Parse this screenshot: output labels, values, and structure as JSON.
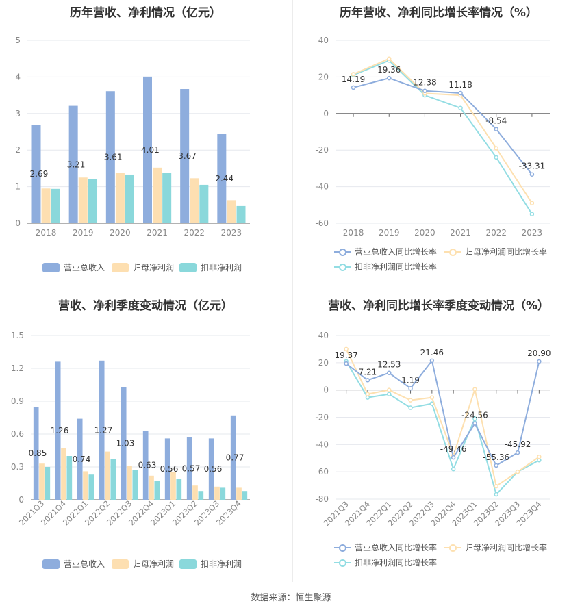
{
  "source_text": "数据来源：恒生聚源",
  "colors": {
    "revenue": "#8eaddd",
    "net_profit": "#fddfb1",
    "deducted_profit": "#8ad8db",
    "revenue_line": "#8eaddd",
    "net_profit_line": "#fde0b0",
    "deducted_profit_line": "#93dde3"
  },
  "chart_data": [
    {
      "type": "bar",
      "title": "历年营收、净利情况（亿元）",
      "categories": [
        "2018",
        "2019",
        "2020",
        "2021",
        "2022",
        "2023"
      ],
      "ylim": [
        0,
        5
      ],
      "yticks": [
        "0",
        "1",
        "2",
        "3",
        "4",
        "5"
      ],
      "grid": true,
      "legend": "bottom",
      "series": [
        {
          "name": "营业总收入",
          "values": [
            2.69,
            3.21,
            3.61,
            4.01,
            3.67,
            2.44
          ],
          "labels": [
            "2.69",
            "3.21",
            "3.61",
            "4.01",
            "3.67",
            "2.44"
          ]
        },
        {
          "name": "归母净利润",
          "values": [
            0.95,
            1.25,
            1.37,
            1.52,
            1.23,
            0.63
          ]
        },
        {
          "name": "扣非净利润",
          "values": [
            0.94,
            1.2,
            1.33,
            1.38,
            1.05,
            0.47
          ]
        }
      ]
    },
    {
      "type": "line",
      "title": "历年营收、净利同比增长率情况（%）",
      "categories": [
        "2018",
        "2019",
        "2020",
        "2021",
        "2022",
        "2023"
      ],
      "ylim": [
        -60,
        40
      ],
      "yticks": [
        "-60",
        "-40",
        "-20",
        "0",
        "20",
        "40"
      ],
      "grid": true,
      "legend": "bottom",
      "series": [
        {
          "name": "营业总收入同比增长率",
          "values": [
            14.19,
            19.36,
            12.38,
            11.18,
            -8.54,
            -33.31
          ],
          "labels": [
            "14.19",
            "19.36",
            "12.38",
            "11.18",
            "-8.54",
            "-33.31"
          ]
        },
        {
          "name": "归母净利润同比增长率",
          "values": [
            21.5,
            30.0,
            11.0,
            10.0,
            -19.0,
            -49.0
          ]
        },
        {
          "name": "扣非净利润同比增长率",
          "values": [
            21.0,
            29.0,
            10.0,
            3.0,
            -24.0,
            -55.0
          ]
        }
      ]
    },
    {
      "type": "bar",
      "title": "营收、净利季度变动情况（亿元）",
      "categories": [
        "2021Q3",
        "2021Q4",
        "2022Q1",
        "2022Q2",
        "2022Q3",
        "2022Q4",
        "2023Q1",
        "2023Q2",
        "2023Q3",
        "2023Q4"
      ],
      "ylim": [
        0,
        1.5
      ],
      "yticks": [
        "0",
        "0.3",
        "0.6",
        "0.9",
        "1.2",
        "1.5"
      ],
      "grid": true,
      "legend": "bottom",
      "series": [
        {
          "name": "营业总收入",
          "values": [
            0.85,
            1.26,
            0.74,
            1.27,
            1.03,
            0.63,
            0.56,
            0.57,
            0.56,
            0.77
          ],
          "labels": [
            "0.85",
            "1.26",
            "0.74",
            "1.27",
            "1.03",
            "0.63",
            "0.56",
            "0.57",
            "0.56",
            "0.77"
          ]
        },
        {
          "name": "归母净利润",
          "values": [
            0.33,
            0.47,
            0.26,
            0.44,
            0.31,
            0.22,
            0.25,
            0.13,
            0.12,
            0.11
          ]
        },
        {
          "name": "扣非净利润",
          "values": [
            0.3,
            0.4,
            0.23,
            0.37,
            0.27,
            0.17,
            0.19,
            0.08,
            0.11,
            0.08
          ]
        }
      ]
    },
    {
      "type": "line",
      "title": "营收、净利同比增长率季度变动情况（%）",
      "categories": [
        "2021Q3",
        "2021Q4",
        "2022Q1",
        "2022Q2",
        "2022Q3",
        "2022Q4",
        "2023Q1",
        "2023Q2",
        "2023Q3",
        "2023Q4"
      ],
      "ylim": [
        -80,
        40
      ],
      "yticks": [
        "-80",
        "-60",
        "-40",
        "-20",
        "0",
        "20",
        "40"
      ],
      "grid": true,
      "legend": "bottom",
      "series": [
        {
          "name": "营业总收入同比增长率",
          "values": [
            19.37,
            7.21,
            12.53,
            1.19,
            21.46,
            -49.46,
            -24.56,
            -55.36,
            -45.92,
            20.9
          ],
          "labels": [
            "19.37",
            "7.21",
            "12.53",
            "1.19",
            "21.46",
            "-49.46",
            "-24.56",
            "-55.36",
            "-45.92",
            "20.90"
          ]
        },
        {
          "name": "归母净利润同比增长率",
          "values": [
            30.0,
            -3.0,
            0.0,
            -7.5,
            -5.5,
            -48.0,
            0.5,
            -70.5,
            -60.0,
            -49.0
          ]
        },
        {
          "name": "扣非净利润同比增长率",
          "values": [
            21.0,
            -5.5,
            -3.0,
            -13.0,
            -10.0,
            -58.0,
            -21.0,
            -76.5,
            -60.0,
            -51.5
          ]
        }
      ]
    }
  ]
}
